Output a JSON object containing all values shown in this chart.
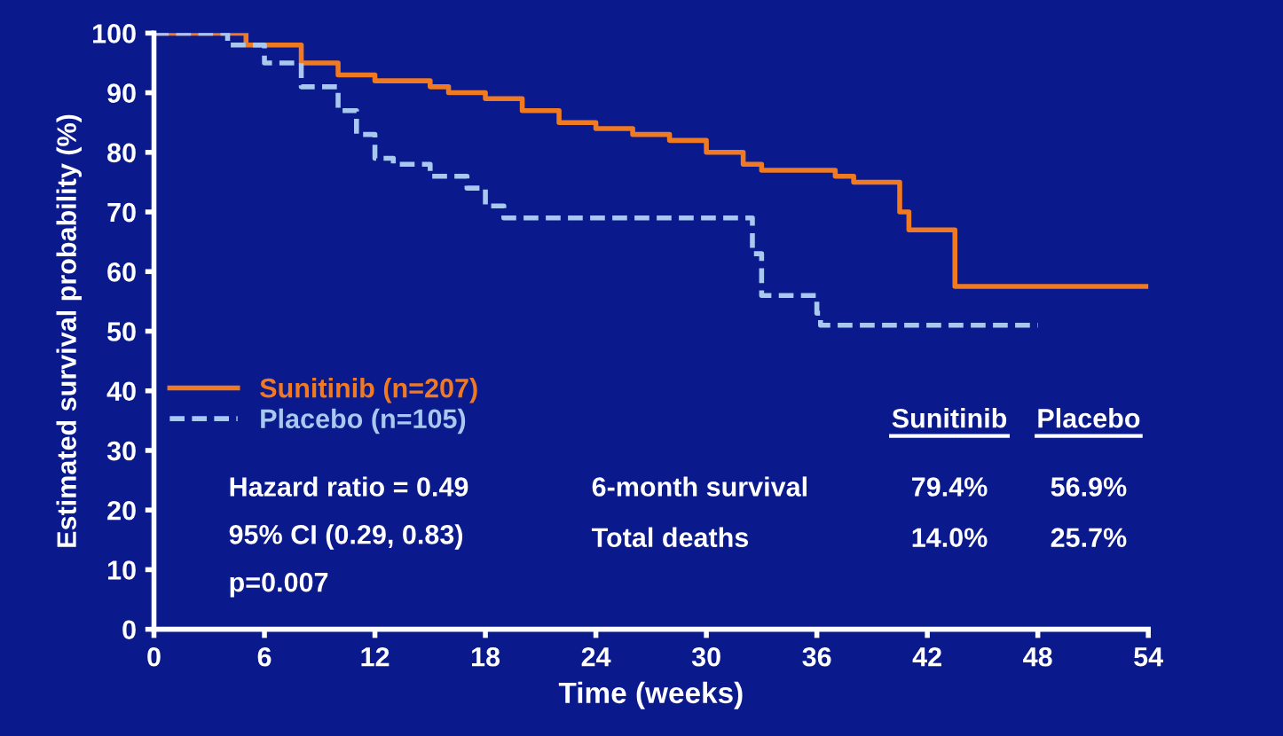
{
  "chart_data": {
    "type": "step",
    "xlabel": "Time (weeks)",
    "ylabel": "Estimated survival probability (%)",
    "xlim": [
      0,
      54
    ],
    "xticks": [
      0,
      6,
      12,
      18,
      24,
      30,
      36,
      42,
      48,
      54
    ],
    "ylim": [
      0,
      100
    ],
    "yticks": [
      0,
      10,
      20,
      30,
      40,
      50,
      60,
      70,
      80,
      90,
      100
    ],
    "grid": false,
    "legend": "left",
    "series": [
      {
        "name": "Sunitinib (n=207)",
        "color": "#f07a22",
        "line_style": "solid",
        "x": [
          0,
          3,
          5,
          8,
          10,
          12,
          15,
          16,
          18,
          20,
          22,
          24,
          26,
          28,
          30,
          32,
          33,
          36,
          37,
          38,
          40,
          40.5,
          41,
          43.5,
          43.5,
          54
        ],
        "values": [
          100,
          100,
          98,
          95,
          93,
          92,
          91,
          90,
          89,
          87,
          85,
          84,
          83,
          82,
          80,
          78,
          77,
          77,
          76,
          75,
          75,
          70,
          67,
          67,
          57.5,
          57.5
        ]
      },
      {
        "name": "Placebo (n=105)",
        "color": "#a8c8f0",
        "line_style": "dashed",
        "x": [
          0,
          2,
          4,
          6,
          8,
          10,
          11,
          12,
          13,
          15,
          17,
          18,
          19,
          32,
          32.5,
          33,
          35,
          36,
          36.2,
          48
        ],
        "values": [
          100,
          100,
          98,
          95,
          91,
          87,
          83,
          79,
          78,
          76,
          74,
          71,
          69,
          69,
          63,
          56,
          56,
          53,
          51,
          51
        ]
      }
    ],
    "annotations": [
      "Hazard ratio = 0.49",
      "95% CI (0.29, 0.83)",
      "p=0.007",
      "Sunitinib",
      "Placebo",
      "6-month survival",
      "79.4%",
      "56.9%",
      "Total deaths",
      "14.0%",
      "25.7%"
    ]
  }
}
